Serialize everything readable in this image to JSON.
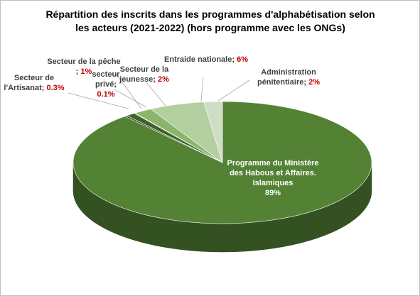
{
  "chart_data": {
    "type": "pie3d",
    "title": "Répartition des inscrits dans les programmes d'alphabétisation selon les acteurs (2021-2022) (hors programme avec les ONGs)",
    "categories": [
      "Programme du Ministère des Habous et Affaires. Islamiques",
      "Secteur de l'Artisanat;",
      "Secteur de la pêche ;",
      "secteur privé;",
      "Secteur de la jeunesse;",
      "Entraide nationale;",
      "Administration pénitentiaire;"
    ],
    "values": [
      89,
      0.3,
      1,
      0.1,
      2,
      6,
      2
    ],
    "value_labels": [
      "89%",
      "0.3%",
      "1%",
      "0.1%",
      "2%",
      "6%",
      "2%"
    ],
    "colors": [
      "#548235",
      "#2f4a1c",
      "#3f6328",
      "#5d8a3a",
      "#8cb56c",
      "#b3cfa0",
      "#cfdcc6"
    ]
  }
}
